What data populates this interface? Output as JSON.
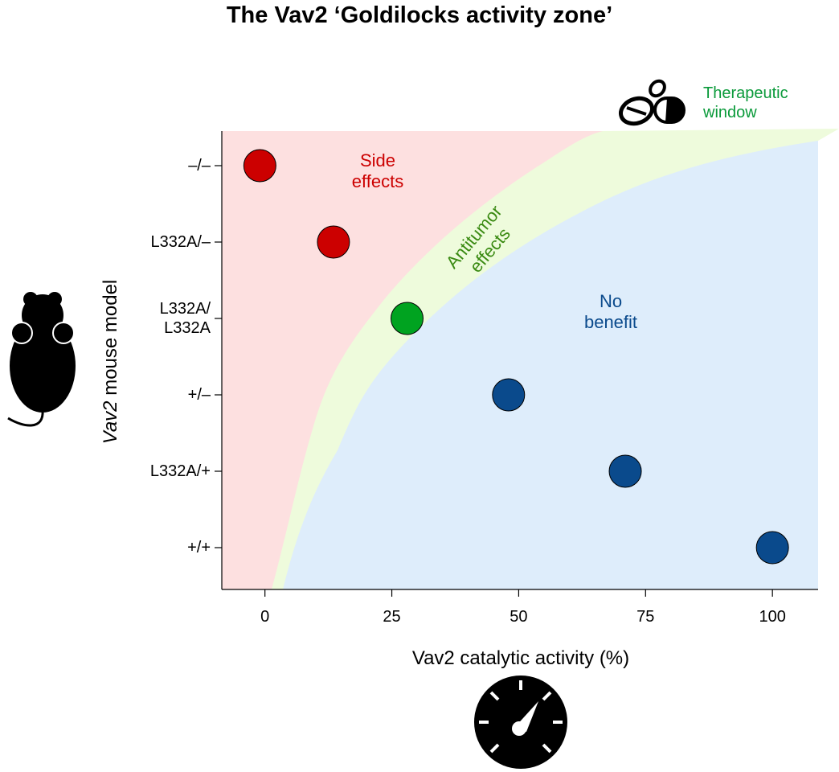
{
  "chart_data": {
    "type": "scatter",
    "title": "The Vav2 ‘Goldilocks activity zone’",
    "x_label": "Vav2 catalytic activity (%)",
    "y_label": "Vav2 mouse model",
    "categories": [
      "–/–",
      "L332A/–",
      "L332A/ L332A",
      "+/–",
      "L332A/+",
      "+/+"
    ],
    "x": [
      -1,
      13.5,
      28,
      48,
      71,
      100
    ],
    "colors": [
      "#cc0000",
      "#cc0000",
      "#00a320",
      "#0a4a8c",
      "#0a4a8c",
      "#0a4a8c"
    ],
    "xlim": [
      -8.5,
      109
    ],
    "xticks": [
      0,
      25,
      50,
      75,
      100
    ],
    "annotations": [
      {
        "text": "Side effects",
        "color": "#cc0000"
      },
      {
        "text": "Antitumor effects",
        "color": "#3a8a12"
      },
      {
        "text": "No benefit",
        "color": "#0a4a8c"
      },
      {
        "text": "Therapeutic window",
        "color": "#0a9a3a"
      }
    ]
  }
}
